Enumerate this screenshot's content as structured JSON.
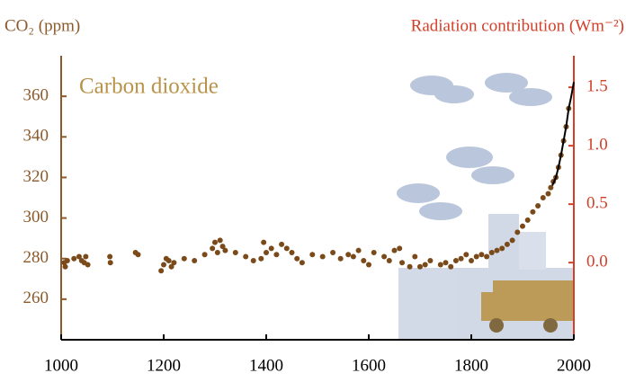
{
  "chart_data": {
    "type": "scatter",
    "title": "CO₂ (ppm)",
    "y2_title": "Radiation contribution  (Wm⁻²)",
    "annotation": "Carbon dioxide",
    "xlim": [
      1000,
      2000
    ],
    "xticks": [
      1000,
      1200,
      1400,
      1600,
      1800,
      2000
    ],
    "ylim": [
      240,
      380
    ],
    "yticks": [
      260,
      280,
      300,
      320,
      340,
      360
    ],
    "y2lim": [
      -0.66,
      1.77
    ],
    "y2ticks": [
      {
        "value": 0,
        "label": "0.0"
      },
      0.5,
      {
        "value": 1,
        "label": "1.0"
      },
      1.5
    ],
    "left_color": "#8b5a2b",
    "right_color": "#d2402a",
    "annotation_color": "#b8934a",
    "series": [
      {
        "color": "#7a4a1a",
        "marker": "dot",
        "x": [
          1006,
          1008,
          1012,
          1025,
          1035,
          1040,
          1045,
          1048,
          1052,
          1095,
          1096,
          1145,
          1150,
          1195,
          1200,
          1205,
          1210,
          1215,
          1220,
          1240,
          1260,
          1280,
          1295,
          1300,
          1305,
          1310,
          1315,
          1320,
          1340,
          1360,
          1375,
          1390,
          1395,
          1400,
          1410,
          1420,
          1430,
          1440,
          1450,
          1460,
          1470,
          1490,
          1510,
          1530,
          1545,
          1560,
          1570,
          1580,
          1590,
          1600,
          1610,
          1630,
          1640,
          1650,
          1660,
          1665,
          1680,
          1690,
          1700,
          1710,
          1720,
          1740,
          1750,
          1760,
          1770,
          1780,
          1790,
          1800,
          1810,
          1820,
          1830,
          1840,
          1850,
          1860,
          1870,
          1880,
          1890,
          1900,
          1910,
          1920,
          1930,
          1940,
          1950,
          1955,
          1960,
          1965,
          1970,
          1975,
          1980,
          1985,
          1990
        ],
        "values": [
          278,
          276,
          279,
          280,
          281,
          279,
          278,
          281,
          277,
          281,
          278,
          283,
          282,
          274,
          277,
          280,
          279,
          276,
          278,
          280,
          279,
          282,
          285,
          288,
          283,
          289,
          286,
          284,
          283,
          281,
          279,
          280,
          288,
          283,
          285,
          282,
          287,
          285,
          283,
          280,
          278,
          282,
          281,
          283,
          280,
          282,
          281,
          284,
          279,
          277,
          283,
          281,
          279,
          284,
          285,
          278,
          276,
          281,
          276,
          277,
          279,
          277,
          278,
          276,
          279,
          280,
          282,
          279,
          281,
          282,
          281,
          283,
          284,
          285,
          287,
          289,
          293,
          296,
          299,
          303,
          306,
          310,
          312,
          315,
          318,
          320,
          325,
          331,
          338,
          345,
          354
        ]
      },
      {
        "color": "#000000",
        "marker": "line",
        "x": [
          1958,
          1965,
          1970,
          1975,
          1980,
          1985,
          1990,
          1995,
          2000
        ],
        "values": [
          316,
          320,
          325,
          331,
          338,
          345,
          354,
          360,
          367
        ]
      }
    ]
  }
}
